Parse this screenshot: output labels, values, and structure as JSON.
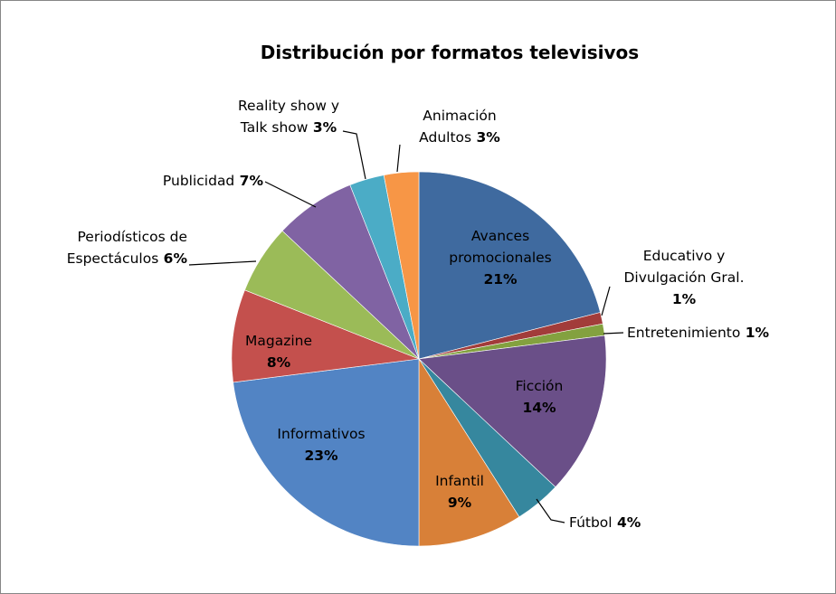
{
  "chart_data": {
    "type": "pie",
    "title": "Distribución por formatos televisivos",
    "slices": [
      {
        "lines": [
          "Avances",
          "promocionales"
        ],
        "value": 21,
        "pct_label": "21%",
        "pct_newline": true,
        "color": "#3F6A9F",
        "inside": true,
        "text_color": "#000000"
      },
      {
        "lines": [
          "Educativo y",
          "Divulgación Gral."
        ],
        "value": 1,
        "pct_label": "1%",
        "pct_newline": true,
        "color": "#A23C3A",
        "inside": false
      },
      {
        "lines": [
          "Entretenimiento"
        ],
        "value": 1,
        "pct_label": "1%",
        "pct_newline": false,
        "color": "#83A13F",
        "inside": false
      },
      {
        "lines": [
          "Ficción"
        ],
        "value": 14,
        "pct_label": "14%",
        "pct_newline": true,
        "color": "#6A4F88",
        "inside": true,
        "text_color": "#000000"
      },
      {
        "lines": [
          "Fútbol"
        ],
        "value": 4,
        "pct_label": "4%",
        "pct_newline": false,
        "color": "#36879E",
        "inside": false
      },
      {
        "lines": [
          "Infantil"
        ],
        "value": 9,
        "pct_label": "9%",
        "pct_newline": true,
        "color": "#D88038",
        "inside": true,
        "text_color": "#000000"
      },
      {
        "lines": [
          "Informativos"
        ],
        "value": 23,
        "pct_label": "23%",
        "pct_newline": true,
        "color": "#5284C4",
        "inside": true,
        "text_color": "#000000"
      },
      {
        "lines": [
          "Magazine"
        ],
        "value": 8,
        "pct_label": "8%",
        "pct_newline": true,
        "color": "#C4504D",
        "inside": true,
        "text_color": "#000000"
      },
      {
        "lines": [
          "Periodísticos de",
          "Espectáculos"
        ],
        "value": 6,
        "pct_label": "6%",
        "pct_newline": false,
        "color": "#9BBB58",
        "inside": false
      },
      {
        "lines": [
          "Publicidad"
        ],
        "value": 7,
        "pct_label": "7%",
        "pct_newline": false,
        "color": "#8063A3",
        "inside": false
      },
      {
        "lines": [
          "Reality show y",
          "Talk show"
        ],
        "value": 3,
        "pct_label": "3%",
        "pct_newline": false,
        "color": "#4BACC6",
        "inside": false
      },
      {
        "lines": [
          "Animación",
          "Adultos"
        ],
        "value": 3,
        "pct_label": "3%",
        "pct_newline": false,
        "color": "#F79646",
        "inside": false
      }
    ]
  }
}
